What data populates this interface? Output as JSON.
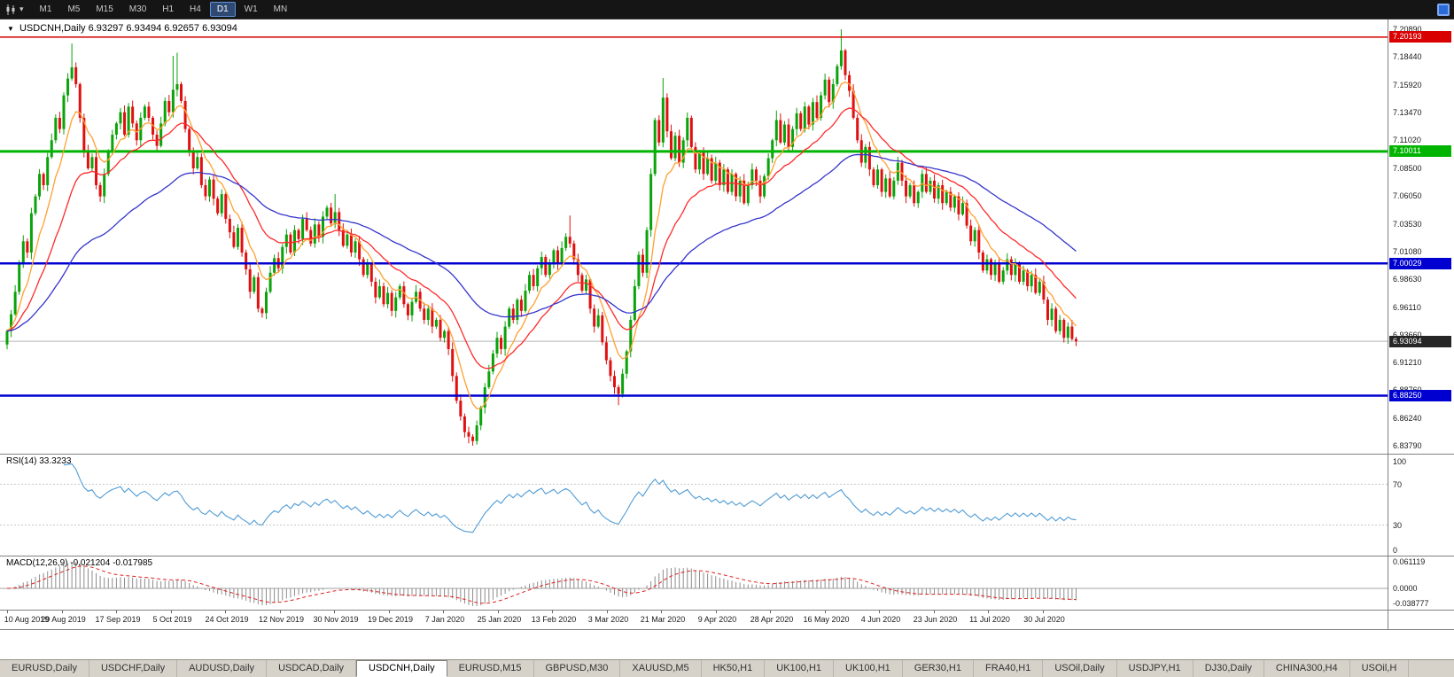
{
  "toolbar": {
    "timeframes": [
      "M1",
      "M5",
      "M15",
      "M30",
      "H1",
      "H4",
      "D1",
      "W1",
      "MN"
    ],
    "active": "D1"
  },
  "chart": {
    "symbol_title": "USDCNH,Daily",
    "quote_ohlc": "6.93297 6.93494 6.92657 6.93094",
    "price_ticks": [
      "7.20890",
      "7.18440",
      "7.15920",
      "7.13470",
      "7.11020",
      "7.08500",
      "7.06050",
      "7.03530",
      "7.01080",
      "6.98630",
      "6.96110",
      "6.93660",
      "6.91210",
      "6.88760",
      "6.86240",
      "6.83790"
    ],
    "hlines": [
      {
        "label": "7.20193",
        "value": 7.20193,
        "color": "#d80000",
        "thickness": 1.5
      },
      {
        "label": "7.10011",
        "value": 7.10011,
        "color": "#00b400",
        "thickness": 3
      },
      {
        "label": "7.00029",
        "value": 7.00029,
        "color": "#0000d0",
        "thickness": 2.5
      },
      {
        "label": "6.88250",
        "value": 6.8825,
        "color": "#0000d0",
        "thickness": 2.5
      }
    ],
    "last_price": {
      "label": "6.93094",
      "value": 6.93094
    },
    "dates": [
      "10 Aug 2019",
      "29 Aug 2019",
      "17 Sep 2019",
      "5 Oct 2019",
      "24 Oct 2019",
      "12 Nov 2019",
      "30 Nov 2019",
      "19 Dec 2019",
      "7 Jan 2020",
      "25 Jan 2020",
      "13 Feb 2020",
      "3 Mar 2020",
      "21 Mar 2020",
      "9 Apr 2020",
      "28 Apr 2020",
      "16 May 2020",
      "4 Jun 2020",
      "23 Jun 2020",
      "11 Jul 2020",
      "30 Jul 2020"
    ]
  },
  "rsi": {
    "title": "RSI(14) 33.3233",
    "period": 14,
    "current": 33.3233,
    "levels": [
      "100",
      "70",
      "30",
      "0"
    ]
  },
  "macd": {
    "title": "MACD(12,26,9) -0.021204 -0.017985",
    "params": [
      12,
      26,
      9
    ],
    "current_macd": -0.021204,
    "current_signal": -0.017985,
    "axis_labels": [
      "0.061119",
      "0.0000",
      "-0.038777"
    ]
  },
  "tabs": {
    "active": "USDCNH,Daily",
    "items": [
      "EURUSD,Daily",
      "USDCHF,Daily",
      "AUDUSD,Daily",
      "USDCAD,Daily",
      "USDCNH,Daily",
      "EURUSD,M15",
      "GBPUSD,M30",
      "XAUUSD,M5",
      "HK50,H1",
      "UK100,H1",
      "UK100,H1",
      "GER30,H1",
      "FRA40,H1",
      "USOil,Daily",
      "USDJPY,H1",
      "DJ30,Daily",
      "CHINA300,H4",
      "USOil,H"
    ]
  },
  "chart_data": {
    "type": "candlestick",
    "symbol": "USDCNH",
    "timeframe": "Daily",
    "price_range": [
      6.8379,
      7.2089
    ],
    "up_color": "#0aa30a",
    "down_color": "#e01010",
    "first_open": 6.928,
    "closes": [
      6.94,
      6.955,
      6.975,
      7.0,
      7.02,
      7.01,
      7.045,
      7.06,
      7.08,
      7.07,
      7.095,
      7.11,
      7.13,
      7.12,
      7.15,
      7.165,
      7.175,
      7.16,
      7.13,
      7.1,
      7.085,
      7.095,
      7.07,
      7.06,
      7.08,
      7.1,
      7.115,
      7.125,
      7.135,
      7.115,
      7.14,
      7.125,
      7.11,
      7.13,
      7.14,
      7.13,
      7.115,
      7.105,
      7.125,
      7.145,
      7.135,
      7.155,
      7.16,
      7.145,
      7.12,
      7.1,
      7.085,
      7.095,
      7.07,
      7.06,
      7.075,
      7.058,
      7.045,
      7.062,
      7.04,
      7.028,
      7.015,
      7.032,
      7.01,
      6.995,
      6.975,
      6.988,
      6.96,
      6.956,
      6.975,
      6.992,
      7.005,
      6.996,
      7.015,
      7.026,
      7.01,
      7.03,
      7.022,
      7.04,
      7.03,
      7.018,
      7.035,
      7.024,
      7.042,
      7.05,
      7.036,
      7.046,
      7.03,
      7.016,
      7.026,
      7.01,
      7.02,
      7.004,
      6.99,
      7.0,
      6.984,
      6.97,
      6.98,
      6.964,
      6.974,
      6.958,
      6.97,
      6.98,
      6.964,
      6.954,
      6.966,
      6.975,
      6.96,
      6.95,
      6.96,
      6.944,
      6.95,
      6.934,
      6.94,
      6.924,
      6.9,
      6.878,
      6.864,
      6.85,
      6.846,
      6.842,
      6.856,
      6.872,
      6.89,
      6.904,
      6.92,
      6.934,
      6.924,
      6.944,
      6.96,
      6.95,
      6.968,
      6.958,
      6.976,
      6.99,
      6.98,
      6.996,
      7.006,
      6.99,
      7.0,
      7.012,
      7.0,
      7.014,
      7.024,
      7.018,
      7.004,
      6.99,
      6.976,
      6.986,
      6.96,
      6.944,
      6.954,
      6.93,
      6.914,
      6.9,
      6.89,
      6.884,
      6.902,
      6.922,
      6.95,
      6.98,
      7.008,
      6.992,
      7.03,
      7.08,
      7.128,
      7.108,
      7.148,
      7.118,
      7.094,
      7.114,
      7.09,
      7.11,
      7.13,
      7.104,
      7.084,
      7.1,
      7.08,
      7.094,
      7.074,
      7.09,
      7.07,
      7.084,
      7.064,
      7.08,
      7.06,
      7.074,
      7.054,
      7.07,
      7.084,
      7.074,
      7.06,
      7.078,
      7.094,
      7.11,
      7.128,
      7.108,
      7.124,
      7.104,
      7.12,
      7.134,
      7.12,
      7.14,
      7.124,
      7.144,
      7.13,
      7.15,
      7.164,
      7.144,
      7.16,
      7.176,
      7.19,
      7.168,
      7.154,
      7.13,
      7.11,
      7.09,
      7.104,
      7.084,
      7.07,
      7.084,
      7.064,
      7.076,
      7.06,
      7.074,
      7.09,
      7.074,
      7.06,
      7.07,
      7.054,
      7.064,
      7.08,
      7.064,
      7.074,
      7.058,
      7.07,
      7.054,
      7.064,
      7.05,
      7.06,
      7.044,
      7.054,
      7.034,
      7.02,
      7.03,
      7.01,
      6.994,
      7.004,
      6.99,
      7.0,
      6.984,
      6.994,
      7.004,
      6.99,
      7.0,
      6.984,
      6.994,
      6.98,
      6.99,
      6.974,
      6.984,
      6.968,
      6.95,
      6.96,
      6.94,
      6.95,
      6.934,
      6.944,
      6.933,
      6.93094
    ],
    "open_overrides": {
      "264": 6.93297
    },
    "high_overrides": {
      "16": 7.1962,
      "41": 7.1852,
      "42": 7.188,
      "81": 7.062,
      "139": 7.043,
      "162": 7.1655,
      "190": 7.1365,
      "206": 7.2089,
      "264": 6.93494
    },
    "low_overrides": {
      "63": 6.952,
      "110": 6.895,
      "115": 6.8379,
      "151": 6.874,
      "264": 6.92657
    },
    "moving_averages": [
      {
        "name": "fast",
        "period": 8,
        "color": "#ffa030"
      },
      {
        "name": "medium",
        "period": 21,
        "color": "#ff2a2a"
      },
      {
        "name": "slow",
        "period": 55,
        "color": "#3535cc"
      }
    ],
    "rsi_period": 14,
    "macd_params": [
      12,
      26,
      9
    ],
    "macd_range": [
      -0.038777,
      0.061119
    ]
  }
}
